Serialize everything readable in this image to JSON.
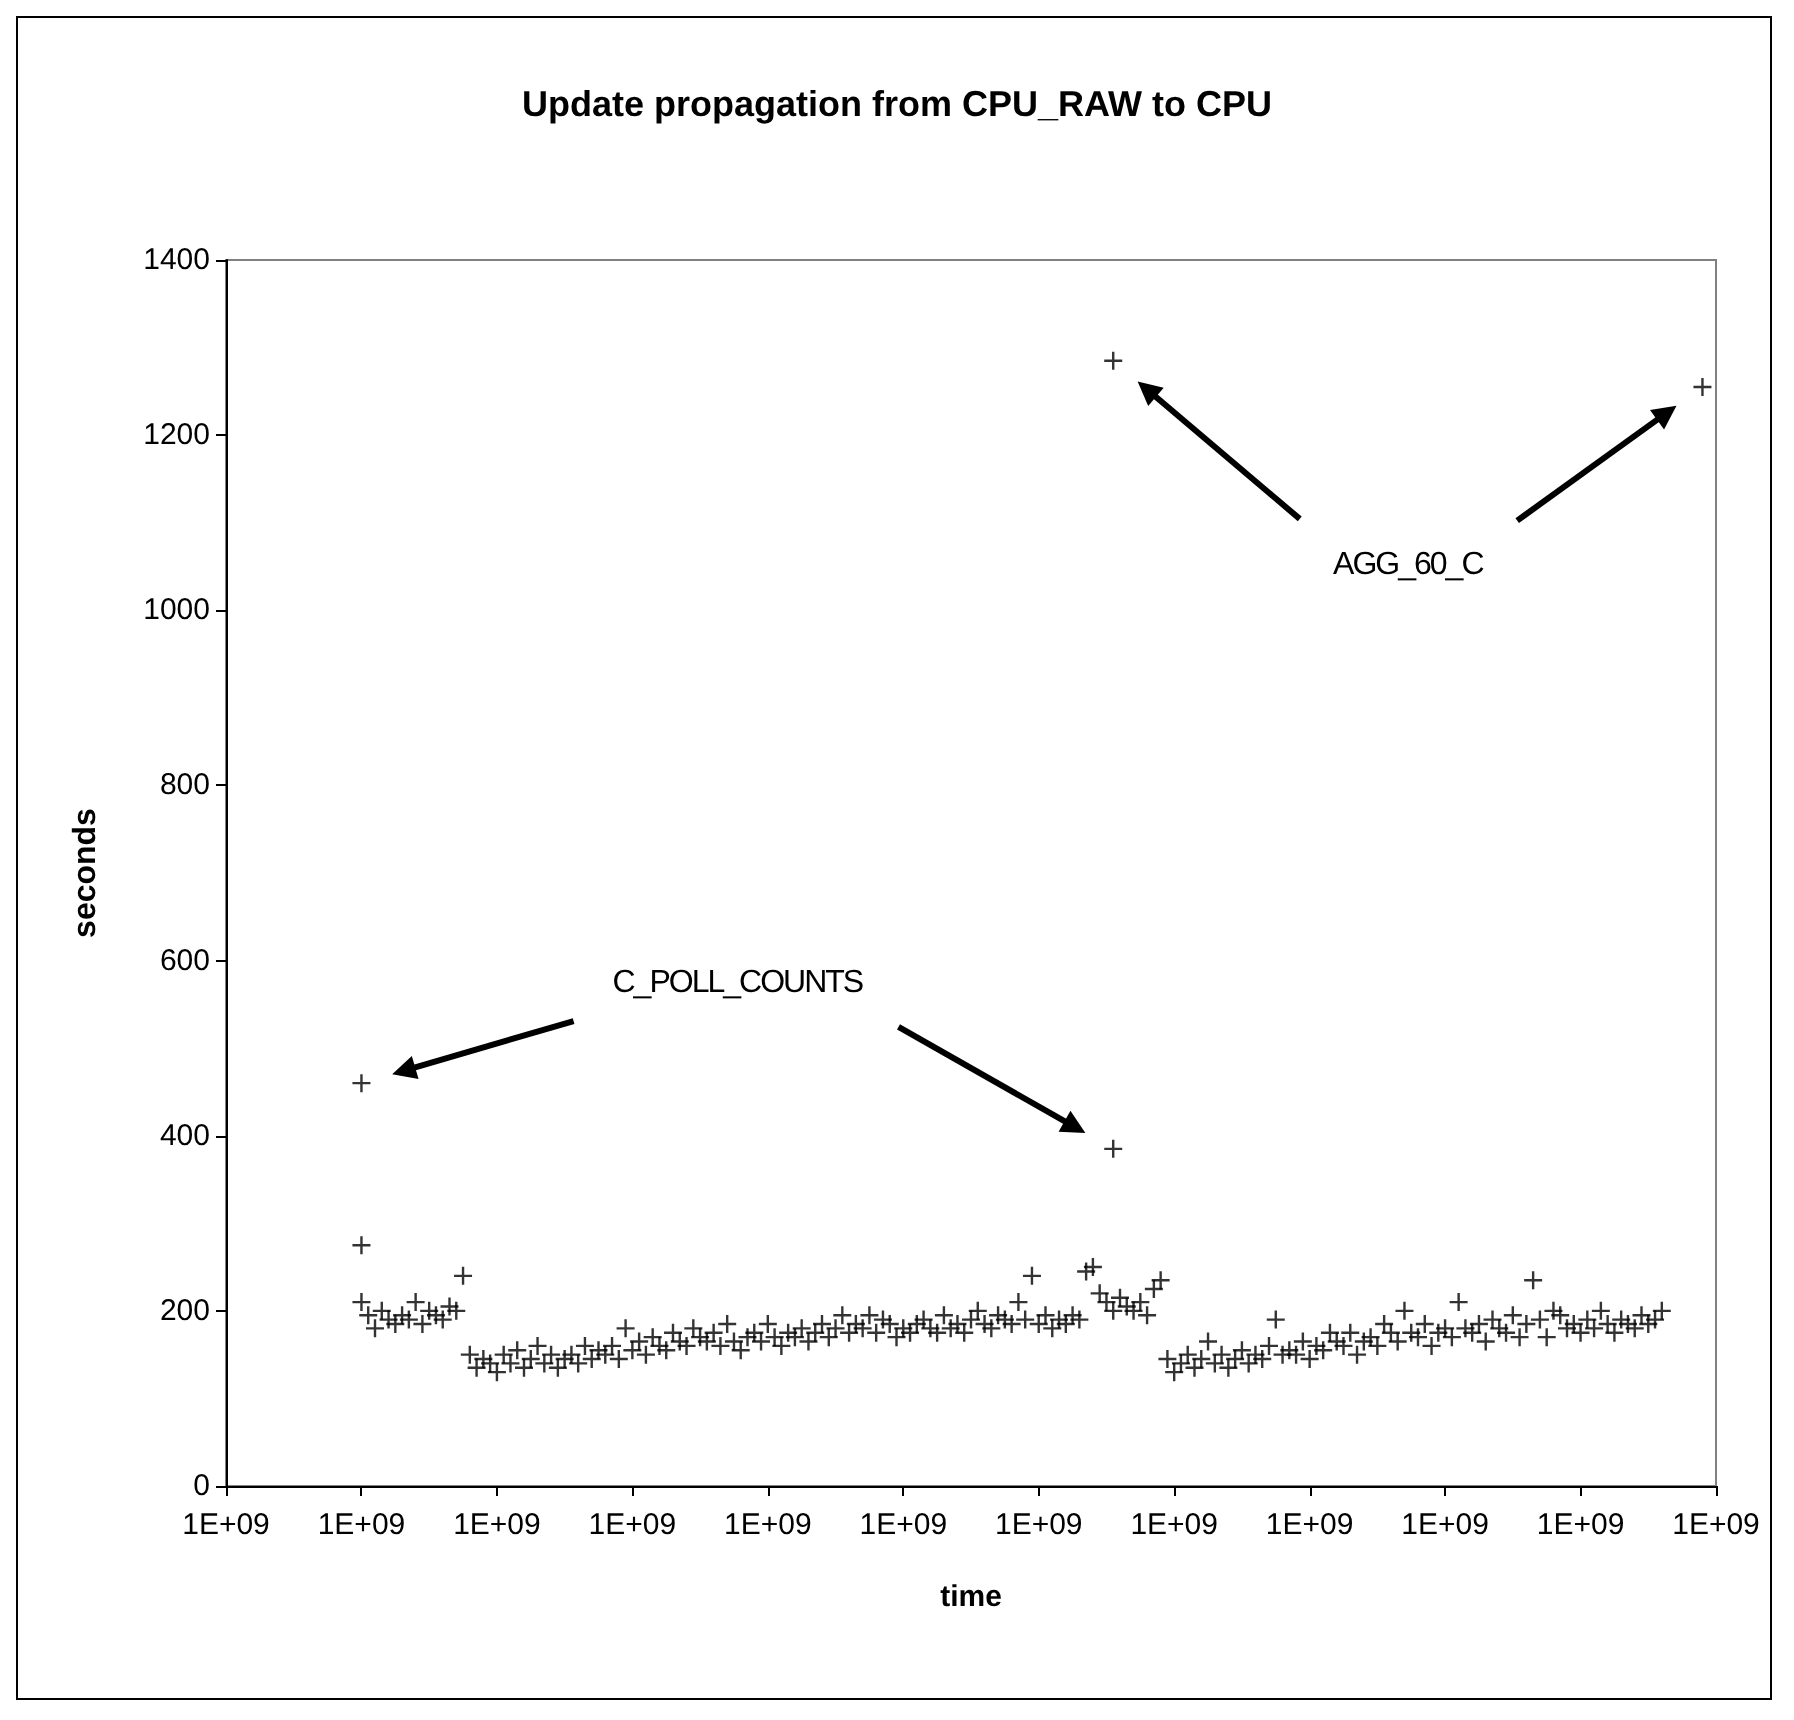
{
  "chart_data": {
    "type": "scatter",
    "title": "Update propagation from CPU_RAW to CPU",
    "xlabel": "time",
    "ylabel": "seconds",
    "categories": [
      "1E+09",
      null,
      null,
      null,
      null,
      null,
      null,
      null,
      null,
      null,
      null,
      null,
      null,
      null,
      null,
      null,
      null,
      null,
      null,
      null,
      "1E+09",
      null,
      null,
      null,
      null,
      null,
      null,
      null,
      null,
      null,
      null,
      null,
      null,
      null,
      null,
      null,
      null,
      null,
      null,
      null,
      "1E+09",
      null,
      null,
      null,
      null,
      null,
      null,
      null,
      null,
      null,
      null,
      null,
      null,
      null,
      null,
      null,
      null,
      null,
      null,
      null,
      "1E+09",
      null,
      null,
      null,
      null,
      null,
      null,
      null,
      null,
      null,
      null,
      null,
      null,
      null,
      null,
      null,
      null,
      null,
      null,
      null,
      "1E+09",
      null,
      null,
      null,
      null,
      null,
      null,
      null,
      null,
      null,
      null,
      null,
      null,
      null,
      null,
      null,
      null,
      null,
      null,
      null,
      "1E+09",
      null,
      null,
      null,
      null,
      null,
      null,
      null,
      null,
      null,
      null,
      null,
      null,
      null,
      null,
      null,
      null,
      null,
      null,
      null,
      "1E+09",
      null,
      null,
      null,
      null,
      null,
      null,
      null,
      null,
      null,
      null,
      null,
      null,
      null,
      null,
      null,
      null,
      null,
      null,
      null,
      "1E+09",
      null,
      null,
      null,
      null,
      null,
      null,
      null,
      null,
      null,
      null,
      null,
      null,
      null,
      null,
      null,
      null,
      null,
      null,
      null,
      "1E+09",
      null,
      null,
      null,
      null,
      null,
      null,
      null,
      null,
      null,
      null,
      null,
      null,
      null,
      null,
      null,
      null,
      null,
      null,
      null,
      "1E+09",
      null,
      null,
      null,
      null,
      null,
      null,
      null,
      null,
      null,
      null,
      null,
      null,
      null,
      null,
      null,
      null,
      null,
      null,
      null,
      "1E+09",
      null,
      null,
      null,
      null,
      null,
      null,
      null,
      null,
      null,
      null,
      null,
      null,
      null,
      null,
      null,
      null,
      null,
      null,
      null,
      "1E+09"
    ],
    "ylim": [
      0,
      1400
    ],
    "yticks": [
      0,
      200,
      400,
      600,
      800,
      1000,
      1200,
      1400
    ],
    "grid": false,
    "marker": "cross",
    "annotations": [
      "C_POLL_COUNTS",
      "AGG_60_C"
    ],
    "series": [
      {
        "color": "#000000",
        "values": [
          null,
          null,
          null,
          null,
          null,
          null,
          null,
          null,
          null,
          null,
          null,
          null,
          null,
          null,
          null,
          null,
          null,
          null,
          null,
          null,
          210,
          195,
          180,
          200,
          190,
          185,
          195,
          190,
          210,
          185,
          200,
          195,
          190,
          205,
          200,
          240,
          150,
          135,
          145,
          140,
          130,
          150,
          140,
          155,
          135,
          145,
          160,
          140,
          150,
          135,
          145,
          150,
          140,
          160,
          145,
          155,
          150,
          160,
          145,
          180,
          155,
          165,
          150,
          170,
          160,
          155,
          175,
          165,
          160,
          180,
          170,
          165,
          175,
          160,
          185,
          165,
          155,
          170,
          175,
          165,
          185,
          170,
          160,
          175,
          170,
          180,
          165,
          175,
          185,
          170,
          180,
          195,
          175,
          185,
          180,
          195,
          175,
          190,
          185,
          170,
          180,
          175,
          185,
          190,
          180,
          175,
          195,
          180,
          185,
          175,
          190,
          200,
          185,
          180,
          195,
          190,
          185,
          210,
          190,
          240,
          185,
          195,
          180,
          190,
          185,
          195,
          190,
          245,
          250,
          220,
          210,
          200,
          215,
          205,
          200,
          210,
          195,
          225,
          235,
          145,
          130,
          140,
          150,
          135,
          145,
          165,
          140,
          150,
          135,
          145,
          155,
          140,
          150,
          145,
          160,
          190,
          150,
          155,
          150,
          165,
          145,
          160,
          155,
          175,
          165,
          160,
          175,
          150,
          165,
          170,
          160,
          185,
          175,
          165,
          200,
          175,
          170,
          185,
          160,
          175,
          180,
          170,
          210,
          180,
          175,
          185,
          165,
          190,
          180,
          175,
          195,
          170,
          185,
          235,
          190,
          170,
          200,
          195,
          180,
          185,
          175,
          190,
          180,
          200,
          185,
          175,
          190,
          185,
          180,
          195,
          185,
          190,
          200,
          null,
          null,
          null,
          null,
          null,
          null,
          null,
          null
        ]
      },
      {
        "color": "#000000",
        "values": [
          null,
          null,
          null,
          null,
          null,
          null,
          null,
          null,
          null,
          null,
          null,
          null,
          null,
          null,
          null,
          null,
          null,
          null,
          null,
          null,
          275,
          null,
          null,
          null,
          null,
          null,
          null,
          null,
          null,
          null,
          null,
          null,
          null,
          null,
          null,
          null,
          null,
          null,
          null,
          null,
          null,
          null,
          null,
          null,
          null,
          null,
          null,
          null,
          null,
          null,
          null,
          null,
          null,
          null,
          null,
          null,
          null,
          null,
          null,
          null,
          null,
          null,
          null,
          null,
          null,
          null,
          null,
          null,
          null,
          null,
          null,
          null,
          null,
          null,
          null,
          null,
          null,
          null,
          null,
          null,
          null,
          null,
          null,
          null,
          null,
          null,
          null,
          null,
          null,
          null,
          null,
          null,
          null,
          null,
          null,
          null,
          null,
          null,
          null,
          null,
          null,
          null,
          null,
          null,
          null,
          null,
          null,
          null,
          null,
          null,
          null,
          null,
          null,
          null,
          null,
          null,
          null,
          null,
          null,
          null,
          null,
          null,
          null,
          null,
          null,
          null,
          null,
          null,
          null,
          null,
          null,
          1285,
          null,
          null,
          null,
          null,
          null,
          null,
          null,
          null,
          null,
          null,
          null,
          null,
          null,
          null,
          null,
          null,
          null,
          null,
          null,
          null,
          null,
          null,
          null,
          null,
          null,
          null,
          null,
          null,
          null,
          null,
          null,
          null,
          null,
          null,
          null,
          null,
          null,
          null,
          null,
          null,
          null,
          null,
          null,
          null,
          null,
          null,
          null,
          null,
          null,
          null,
          null,
          null,
          null,
          null,
          null,
          null,
          null,
          null,
          null,
          null,
          null,
          null,
          null,
          null,
          null,
          null,
          null,
          null,
          null,
          null,
          null,
          null,
          null,
          null,
          null,
          null,
          null,
          null,
          null,
          null,
          null,
          null,
          null,
          null,
          null,
          null,
          1255,
          null,
          null
        ]
      },
      {
        "color": "#000000",
        "values": [
          null,
          null,
          null,
          null,
          null,
          null,
          null,
          null,
          null,
          null,
          null,
          null,
          null,
          null,
          null,
          null,
          null,
          null,
          null,
          null,
          460,
          null,
          null,
          null,
          null,
          null,
          null,
          null,
          null,
          null,
          null,
          null,
          null,
          null,
          null,
          null,
          null,
          null,
          null,
          null,
          null,
          null,
          null,
          null,
          null,
          null,
          null,
          null,
          null,
          null,
          null,
          null,
          null,
          null,
          null,
          null,
          null,
          null,
          null,
          null,
          null,
          null,
          null,
          null,
          null,
          null,
          null,
          null,
          null,
          null,
          null,
          null,
          null,
          null,
          null,
          null,
          null,
          null,
          null,
          null,
          null,
          null,
          null,
          null,
          null,
          null,
          null,
          null,
          null,
          null,
          null,
          null,
          null,
          null,
          null,
          null,
          null,
          null,
          null,
          null,
          null,
          null,
          null,
          null,
          null,
          null,
          null,
          null,
          null,
          null,
          null,
          null,
          null,
          null,
          null,
          null,
          null,
          null,
          null,
          null,
          null,
          null,
          null,
          null,
          null,
          null,
          null,
          null,
          null,
          null,
          null,
          385,
          null,
          null,
          null,
          null,
          null,
          null,
          null,
          null,
          null,
          null,
          null,
          null,
          null,
          null,
          null,
          null,
          null,
          null,
          null,
          null,
          null,
          null,
          null,
          null,
          null,
          null,
          null,
          null,
          null,
          null,
          null,
          null,
          null,
          null,
          null,
          null,
          null,
          null,
          null,
          null,
          null,
          null,
          null,
          null,
          null,
          null,
          null,
          null,
          null,
          null,
          null,
          null,
          null,
          null,
          null,
          null,
          null,
          null,
          null,
          null,
          null,
          null,
          null,
          null,
          null,
          null,
          null,
          null,
          null,
          null,
          null,
          null,
          null,
          null,
          null,
          null,
          null,
          null,
          null,
          null,
          null,
          null,
          null,
          null,
          null,
          null,
          null,
          null,
          null
        ]
      }
    ]
  }
}
